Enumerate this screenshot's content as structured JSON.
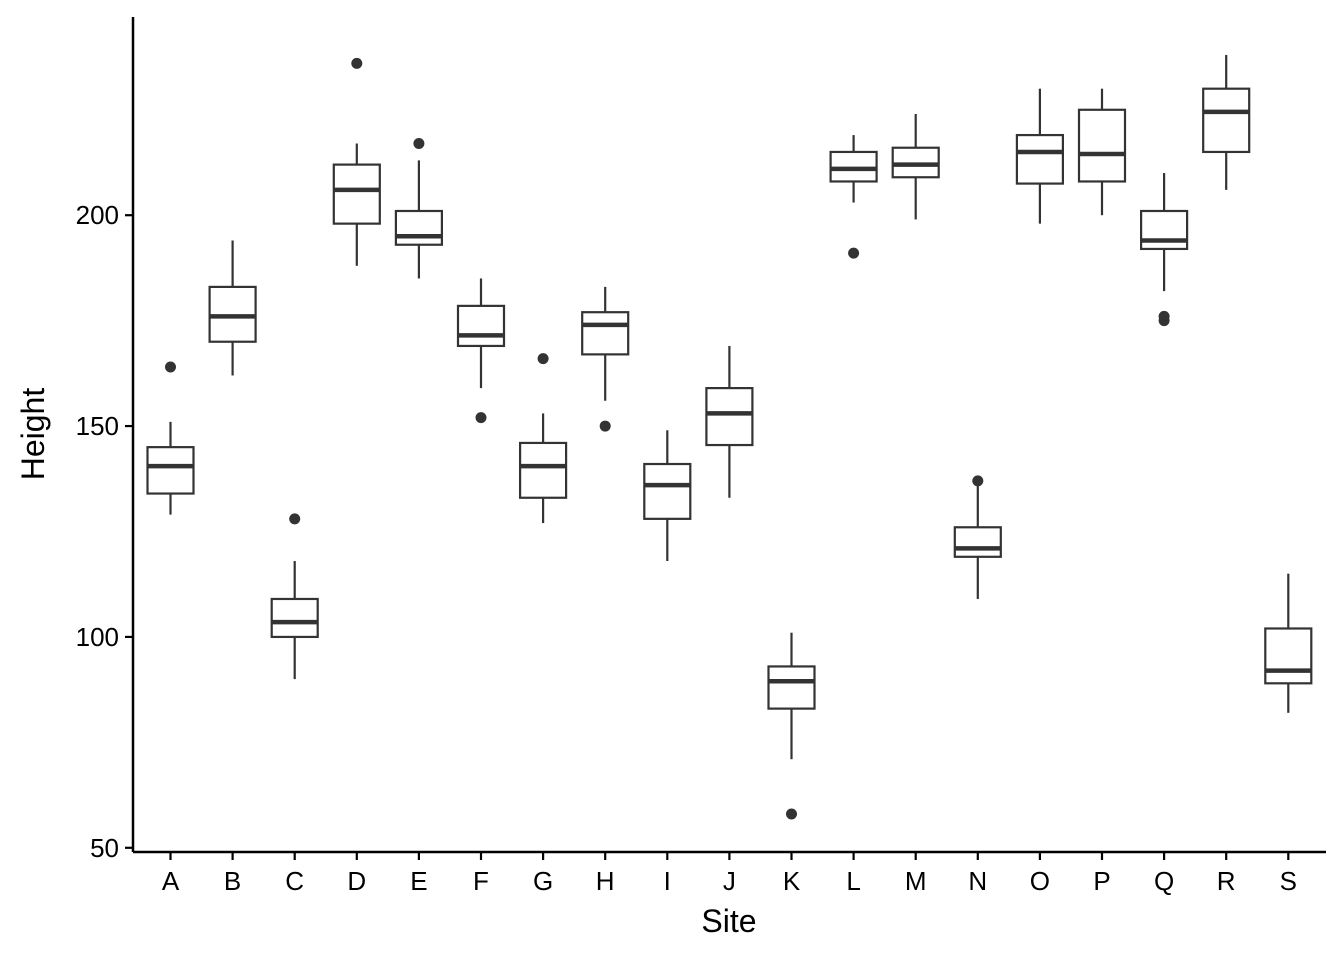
{
  "chart_data": {
    "type": "boxplot",
    "xlabel": "Site",
    "ylabel": "Height",
    "ylim": [
      49,
      247
    ],
    "yticks": [
      50,
      100,
      150,
      200
    ],
    "grid": false,
    "legend": "none",
    "colors": {
      "box_stroke": "#333333",
      "box_fill": "#ffffff",
      "axis": "#000000"
    },
    "categories": [
      "A",
      "B",
      "C",
      "D",
      "E",
      "F",
      "G",
      "H",
      "I",
      "J",
      "K",
      "L",
      "M",
      "N",
      "O",
      "P",
      "Q",
      "R",
      "S"
    ],
    "boxes": [
      {
        "label": "A",
        "whisker_low": 129,
        "q1": 134,
        "median": 140.5,
        "q3": 145,
        "whisker_high": 151,
        "outliers": [
          164
        ]
      },
      {
        "label": "B",
        "whisker_low": 162,
        "q1": 170,
        "median": 176,
        "q3": 183,
        "whisker_high": 194,
        "outliers": []
      },
      {
        "label": "C",
        "whisker_low": 90,
        "q1": 100,
        "median": 103.5,
        "q3": 109,
        "whisker_high": 118,
        "outliers": [
          128
        ]
      },
      {
        "label": "D",
        "whisker_low": 188,
        "q1": 198,
        "median": 206,
        "q3": 212,
        "whisker_high": 217,
        "outliers": [
          236
        ]
      },
      {
        "label": "E",
        "whisker_low": 185,
        "q1": 193,
        "median": 195,
        "q3": 201,
        "whisker_high": 213,
        "outliers": [
          217
        ]
      },
      {
        "label": "F",
        "whisker_low": 159,
        "q1": 169,
        "median": 171.5,
        "q3": 178.5,
        "whisker_high": 185,
        "outliers": [
          152
        ]
      },
      {
        "label": "G",
        "whisker_low": 127,
        "q1": 133,
        "median": 140.5,
        "q3": 146,
        "whisker_high": 153,
        "outliers": [
          166
        ]
      },
      {
        "label": "H",
        "whisker_low": 156,
        "q1": 167,
        "median": 174,
        "q3": 177,
        "whisker_high": 183,
        "outliers": [
          150
        ]
      },
      {
        "label": "I",
        "whisker_low": 118,
        "q1": 128,
        "median": 136,
        "q3": 141,
        "whisker_high": 149,
        "outliers": []
      },
      {
        "label": "J",
        "whisker_low": 133,
        "q1": 145.5,
        "median": 153,
        "q3": 159,
        "whisker_high": 169,
        "outliers": []
      },
      {
        "label": "K",
        "whisker_low": 71,
        "q1": 83,
        "median": 89.5,
        "q3": 93,
        "whisker_high": 101,
        "outliers": [
          58
        ]
      },
      {
        "label": "L",
        "whisker_low": 203,
        "q1": 208,
        "median": 211,
        "q3": 215,
        "whisker_high": 219,
        "outliers": [
          191
        ]
      },
      {
        "label": "M",
        "whisker_low": 199,
        "q1": 209,
        "median": 212,
        "q3": 216,
        "whisker_high": 224,
        "outliers": []
      },
      {
        "label": "N",
        "whisker_low": 109,
        "q1": 119,
        "median": 121,
        "q3": 126,
        "whisker_high": 136,
        "outliers": [
          137
        ]
      },
      {
        "label": "O",
        "whisker_low": 198,
        "q1": 207.5,
        "median": 215,
        "q3": 219,
        "whisker_high": 230,
        "outliers": []
      },
      {
        "label": "P",
        "whisker_low": 200,
        "q1": 208,
        "median": 214.5,
        "q3": 225,
        "whisker_high": 230,
        "outliers": []
      },
      {
        "label": "Q",
        "whisker_low": 182,
        "q1": 192,
        "median": 194,
        "q3": 201,
        "whisker_high": 210,
        "outliers": [
          175,
          176
        ]
      },
      {
        "label": "R",
        "whisker_low": 206,
        "q1": 215,
        "median": 224.5,
        "q3": 230,
        "whisker_high": 238,
        "outliers": []
      },
      {
        "label": "S",
        "whisker_low": 82,
        "q1": 89,
        "median": 92,
        "q3": 102,
        "whisker_high": 115,
        "outliers": []
      }
    ]
  }
}
